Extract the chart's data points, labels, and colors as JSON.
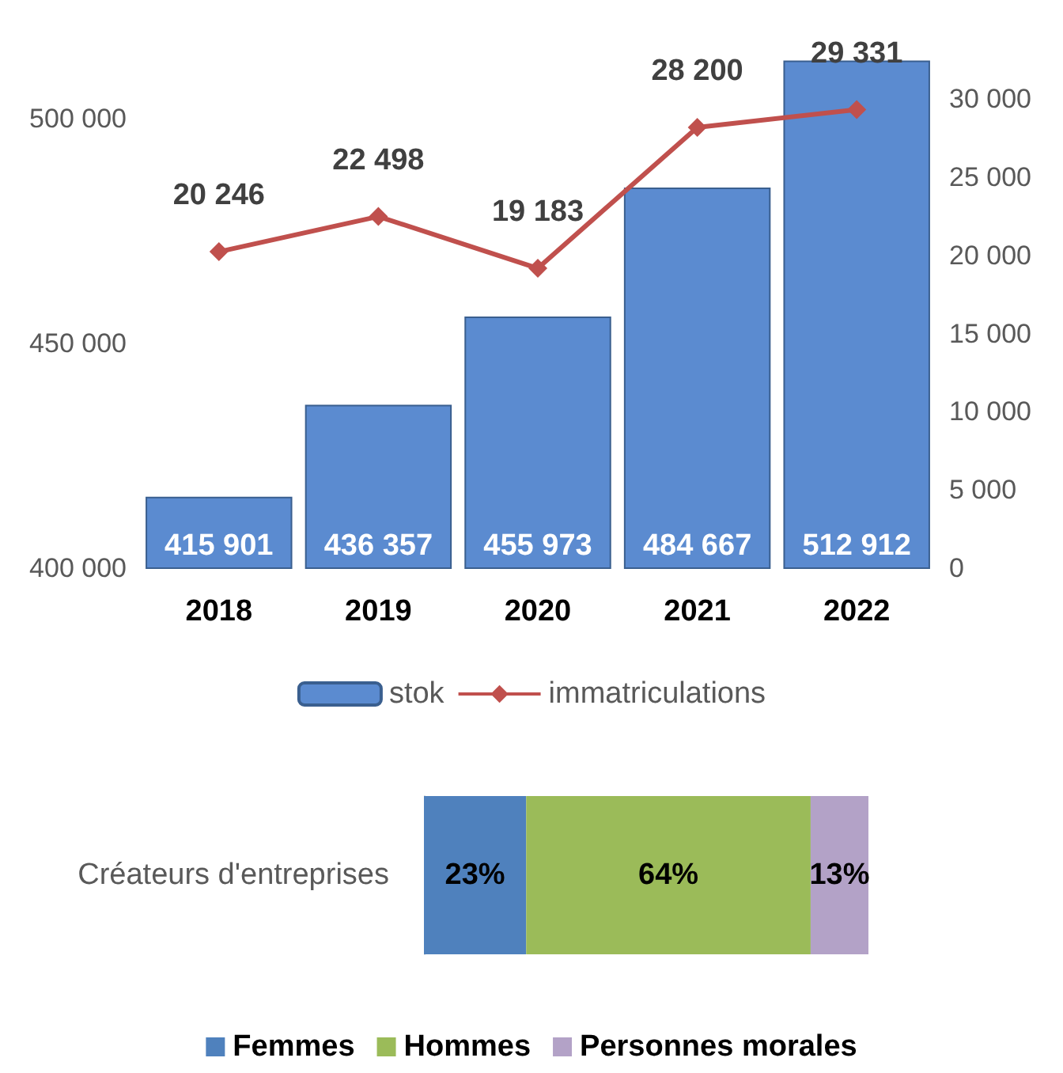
{
  "chart_data": [
    {
      "type": "bar",
      "categories": [
        "2018",
        "2019",
        "2020",
        "2021",
        "2022"
      ],
      "series": [
        {
          "name": "stok",
          "type": "bar",
          "color": "#5b8bd0",
          "values": [
            415901,
            436357,
            455973,
            484667,
            512912
          ]
        },
        {
          "name": "immatriculations",
          "type": "line",
          "axis": "y2",
          "color": "#c0504d",
          "marker": "diamond",
          "values": [
            20246,
            22498,
            19183,
            28200,
            29331
          ]
        }
      ],
      "ylim": [
        400000,
        513000
      ],
      "yticks": [
        400000,
        450000,
        500000
      ],
      "y2lim": [
        0,
        32500
      ],
      "y2ticks": [
        0,
        5000,
        10000,
        15000,
        20000,
        25000,
        30000
      ],
      "data_labels": true,
      "grid": false,
      "legend": "bottom"
    },
    {
      "type": "bar",
      "orientation": "horizontal",
      "stacked": true,
      "categories": [
        "Créateurs d'entreprises"
      ],
      "series": [
        {
          "name": "Femmes",
          "color": "#4f81bd",
          "values": [
            23
          ],
          "value_labels": [
            "23%"
          ]
        },
        {
          "name": "Hommes",
          "color": "#9bbb59",
          "values": [
            64
          ],
          "value_labels": [
            "64%"
          ]
        },
        {
          "name": "Personnes morales",
          "color": "#b3a2c7",
          "values": [
            13
          ],
          "value_labels": [
            "13%"
          ]
        }
      ],
      "tick_labels": "y",
      "grid": false,
      "legend": "bottom"
    }
  ]
}
